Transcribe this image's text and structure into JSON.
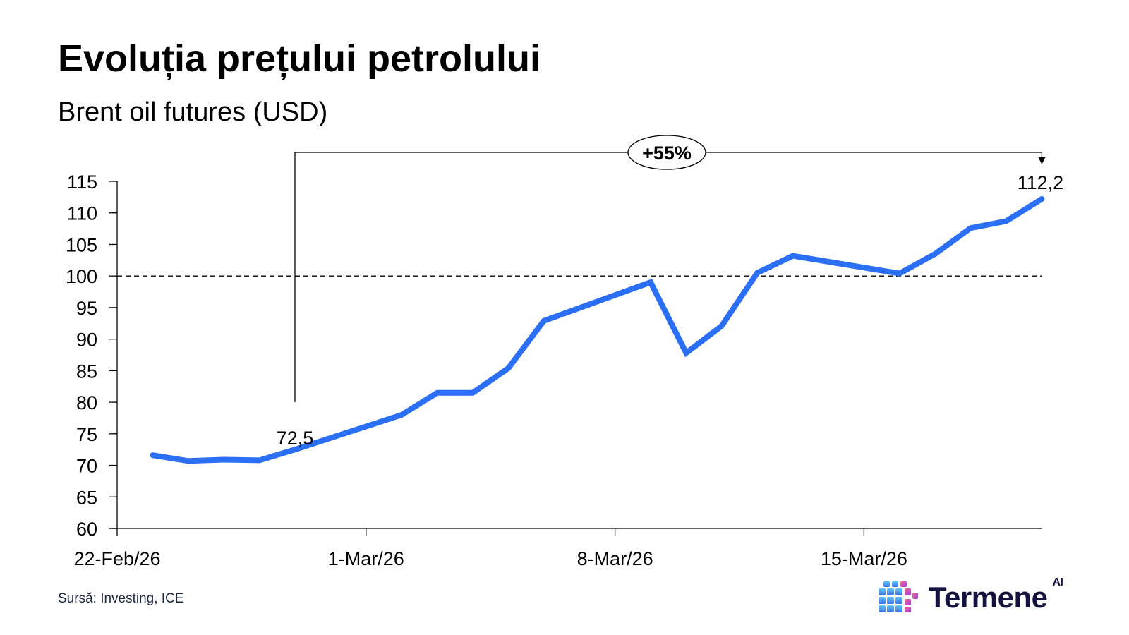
{
  "header": {
    "title": "Evoluția prețului petrolului",
    "subtitle": "Brent oil futures (USD)"
  },
  "annotations": {
    "start_label": "72,5",
    "end_label": "112,2",
    "change_label": "+55%"
  },
  "footer": {
    "source": "Sursă: Investing, ICE",
    "logo_text": "Termene",
    "logo_sup": "AI"
  },
  "colors": {
    "line": "#2a6ff5",
    "text": "#000000",
    "source_text": "#1c2744",
    "logo_text": "#14123f"
  },
  "chart_data": {
    "type": "line",
    "title": "Evoluția prețului petrolului",
    "subtitle": "Brent oil futures (USD)",
    "xlabel": "",
    "ylabel": "",
    "ylim": [
      60,
      115
    ],
    "yticks": [
      60,
      65,
      70,
      75,
      80,
      85,
      90,
      95,
      100,
      105,
      110,
      115
    ],
    "xticks": [
      "22-Feb/26",
      "1-Mar/26",
      "8-Mar/26",
      "15-Mar/26"
    ],
    "reference_line": {
      "y": 100,
      "style": "dashed"
    },
    "grid": false,
    "legend": null,
    "x": [
      "23-Feb/26",
      "24-Feb/26",
      "25-Feb/26",
      "26-Feb/26",
      "27-Feb/26",
      "2-Mar/26",
      "3-Mar/26",
      "4-Mar/26",
      "5-Mar/26",
      "6-Mar/26",
      "9-Mar/26",
      "10-Mar/26",
      "11-Mar/26",
      "12-Mar/26",
      "13-Mar/26",
      "16-Mar/26",
      "17-Mar/26",
      "18-Mar/26",
      "19-Mar/26",
      "20-Mar/26"
    ],
    "day_offsets": [
      1,
      2,
      3,
      4,
      5,
      8,
      9,
      10,
      11,
      12,
      15,
      16,
      17,
      18,
      19,
      22,
      23,
      24,
      25,
      26
    ],
    "series": [
      {
        "name": "Brent oil futures (USD)",
        "values": [
          71.6,
          70.7,
          70.9,
          70.8,
          72.5,
          78.0,
          81.5,
          81.5,
          85.4,
          92.9,
          99.0,
          87.8,
          92.1,
          100.5,
          103.2,
          100.4,
          103.5,
          107.6,
          108.7,
          112.2
        ]
      }
    ],
    "annotations": [
      {
        "x": "27-Feb/26",
        "y": 72.5,
        "text": "72,5"
      },
      {
        "x": "20-Mar/26",
        "y": 112.2,
        "text": "112,2"
      },
      {
        "text": "+55%",
        "type": "bracket",
        "from": "27-Feb/26",
        "to": "20-Mar/26"
      }
    ]
  }
}
